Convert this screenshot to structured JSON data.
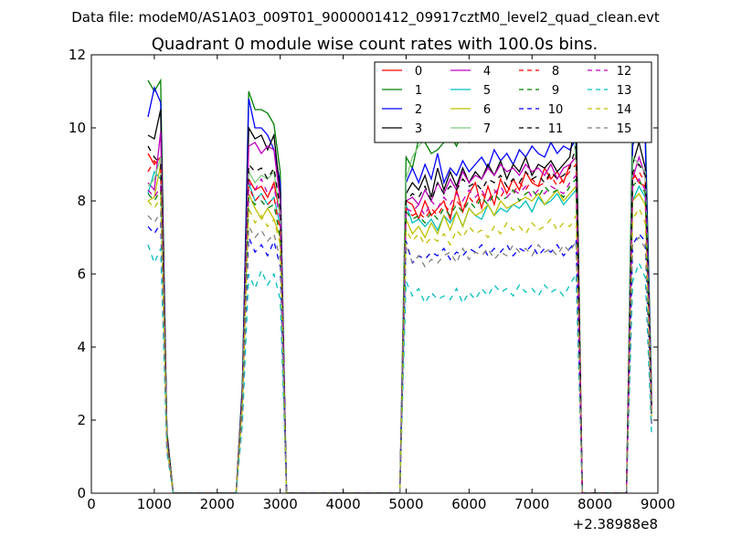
{
  "suptitle": "Data file: modeM0/AS1A03_009T01_9000001412_09917cztM0_level2_quad_clean.evt",
  "chart_data": {
    "type": "line",
    "title": "Quadrant 0 module wise count rates with 100.0s bins.",
    "xlabel": "",
    "ylabel": "",
    "x_offset_label": "+2.38988e8",
    "xlim": [
      0,
      9000
    ],
    "ylim": [
      0,
      12
    ],
    "xticks": [
      0,
      1000,
      2000,
      3000,
      4000,
      5000,
      6000,
      7000,
      8000,
      9000
    ],
    "yticks": [
      0,
      2,
      4,
      6,
      8,
      10,
      12
    ],
    "grid": false,
    "legend": {
      "placement": "top-right",
      "columns": 4
    },
    "x": [
      900,
      1000,
      1100,
      1200,
      1300,
      1400,
      2300,
      2400,
      2500,
      2600,
      2700,
      2800,
      2900,
      3000,
      3100,
      3200,
      4900,
      5000,
      5100,
      5200,
      5300,
      5400,
      5500,
      5600,
      5700,
      5800,
      5900,
      6000,
      6100,
      6200,
      6300,
      6400,
      6500,
      6600,
      6700,
      6800,
      6900,
      7000,
      7100,
      7200,
      7300,
      7400,
      7500,
      7600,
      7700,
      7800,
      7900,
      8500,
      8600,
      8700,
      8800,
      8900
    ],
    "series": [
      {
        "name": "0",
        "color": "#ff0000",
        "dash": "solid",
        "values": [
          9.3,
          9.0,
          9.2,
          1.5,
          0,
          0,
          0,
          2.5,
          8.6,
          8.3,
          8.4,
          8.1,
          8.5,
          7.6,
          0,
          0,
          0,
          8.0,
          7.9,
          7.5,
          8.0,
          7.6,
          7.8,
          8.0,
          7.5,
          8.3,
          7.7,
          8.2,
          8.5,
          7.8,
          8.4,
          7.9,
          8.6,
          8.2,
          8.6,
          8.3,
          8.8,
          8.5,
          8.4,
          8.9,
          8.6,
          8.8,
          8.5,
          9.0,
          9.2,
          0,
          0,
          0,
          8.8,
          8.5,
          8.4,
          2.3
        ]
      },
      {
        "name": "1",
        "color": "#008000",
        "dash": "solid",
        "values": [
          11.3,
          11.0,
          11.3,
          1.7,
          0,
          0,
          0,
          3.0,
          11.0,
          10.5,
          10.5,
          10.4,
          10.1,
          8.8,
          0,
          0,
          0,
          9.2,
          8.9,
          9.7,
          9.6,
          9.3,
          9.4,
          9.6,
          9.8,
          9.5,
          9.9,
          9.6,
          10.0,
          9.7,
          10.1,
          9.8,
          10.0,
          9.9,
          10.2,
          10.0,
          10.2,
          10.1,
          10.3,
          10.0,
          10.4,
          10.2,
          10.3,
          10.1,
          10.5,
          0,
          0,
          0,
          10.5,
          10.8,
          10.0,
          2.8
        ]
      },
      {
        "name": "2",
        "color": "#0000ff",
        "dash": "solid",
        "values": [
          10.3,
          11.1,
          10.7,
          1.6,
          0,
          0,
          0,
          2.9,
          10.8,
          10.0,
          10.0,
          9.8,
          9.4,
          8.5,
          0,
          0,
          0,
          8.5,
          8.9,
          8.5,
          9.0,
          8.6,
          9.3,
          8.5,
          8.9,
          8.7,
          9.1,
          8.8,
          9.0,
          9.2,
          8.9,
          9.4,
          9.1,
          9.3,
          9.0,
          9.4,
          9.2,
          9.5,
          9.3,
          9.2,
          9.6,
          9.3,
          9.5,
          9.4,
          9.7,
          0,
          0,
          0,
          9.5,
          10.2,
          9.6,
          2.6
        ]
      },
      {
        "name": "3",
        "color": "#000000",
        "dash": "solid",
        "values": [
          9.8,
          9.7,
          10.5,
          1.6,
          0,
          0,
          0,
          2.8,
          10.0,
          9.7,
          9.8,
          9.4,
          9.8,
          8.2,
          0,
          0,
          0,
          8.2,
          8.5,
          8.3,
          8.7,
          8.1,
          8.9,
          8.3,
          8.8,
          8.4,
          8.9,
          8.5,
          8.8,
          8.6,
          9.0,
          8.7,
          9.1,
          8.6,
          9.0,
          8.8,
          9.2,
          8.7,
          9.0,
          8.9,
          9.1,
          8.8,
          9.0,
          9.2,
          10.4,
          0,
          0,
          0,
          9.0,
          9.6,
          8.9,
          2.5
        ]
      },
      {
        "name": "4",
        "color": "#bf00bf",
        "dash": "solid",
        "values": [
          8.5,
          8.3,
          9.9,
          1.5,
          0,
          0,
          0,
          2.7,
          9.5,
          9.6,
          9.3,
          9.5,
          9.4,
          8.0,
          0,
          0,
          0,
          8.0,
          8.1,
          7.9,
          8.3,
          8.0,
          8.5,
          8.2,
          8.6,
          8.3,
          8.8,
          8.5,
          8.7,
          8.6,
          8.9,
          8.7,
          9.0,
          8.8,
          8.9,
          8.7,
          9.0,
          8.8,
          8.9,
          8.7,
          9.0,
          8.6,
          8.9,
          9.0,
          9.2,
          0,
          0,
          0,
          8.6,
          9.2,
          8.7,
          2.4
        ]
      },
      {
        "name": "5",
        "color": "#00bfbf",
        "dash": "solid",
        "values": [
          8.2,
          8.8,
          8.6,
          1.4,
          0,
          0,
          0,
          2.5,
          8.5,
          8.0,
          8.2,
          7.9,
          8.1,
          7.3,
          0,
          0,
          0,
          7.9,
          7.4,
          7.5,
          7.3,
          7.5,
          7.2,
          7.6,
          7.4,
          7.7,
          7.3,
          7.8,
          7.6,
          7.5,
          7.9,
          7.6,
          7.8,
          7.7,
          7.9,
          7.8,
          8.0,
          7.7,
          8.1,
          7.9,
          8.0,
          8.2,
          7.9,
          8.1,
          8.3,
          0,
          0,
          0,
          8.0,
          8.4,
          8.1,
          2.2
        ]
      },
      {
        "name": "6",
        "color": "#bfbf00",
        "dash": "solid",
        "values": [
          8.0,
          8.1,
          9.0,
          1.4,
          0,
          0,
          0,
          2.4,
          8.2,
          7.8,
          7.5,
          7.8,
          7.5,
          7.0,
          0,
          0,
          0,
          7.5,
          7.1,
          7.3,
          7.0,
          7.4,
          7.1,
          7.6,
          7.2,
          7.7,
          7.3,
          7.8,
          7.6,
          7.7,
          7.9,
          7.6,
          8.0,
          7.8,
          7.9,
          8.0,
          8.1,
          8.0,
          8.2,
          7.9,
          8.1,
          8.3,
          8.0,
          8.2,
          8.4,
          0,
          0,
          0,
          8.0,
          8.2,
          7.9,
          2.1
        ]
      },
      {
        "name": "7",
        "color": "#7fcc7f",
        "dash": "solid",
        "values": [
          8.4,
          8.6,
          9.2,
          1.4,
          0,
          0,
          0,
          2.6,
          8.8,
          8.5,
          8.7,
          8.6,
          8.8,
          7.6,
          0,
          0,
          0,
          8.6,
          9.2,
          9.5,
          9.7,
          10.0,
          9.8,
          10.2,
          9.9,
          9.6,
          10.1,
          10.3,
          9.9,
          10.5,
          10.2,
          10.4,
          10.6,
          10.3,
          10.8,
          10.5,
          10.7,
          10.2,
          10.9,
          10.6,
          11.0,
          10.7,
          10.9,
          11.5,
          9.0,
          0,
          0,
          0,
          9.2,
          9.0,
          8.8,
          2.4
        ]
      },
      {
        "name": "8",
        "color": "#ff0000",
        "dash": "dashed",
        "values": [
          8.8,
          9.1,
          8.9,
          1.4,
          0,
          0,
          0,
          2.5,
          8.4,
          8.0,
          8.2,
          7.9,
          8.1,
          7.2,
          0,
          0,
          0,
          7.8,
          7.6,
          7.7,
          7.5,
          7.8,
          7.6,
          7.9,
          7.7,
          8.0,
          7.8,
          8.1,
          7.9,
          8.2,
          8.0,
          8.3,
          8.1,
          8.4,
          8.2,
          8.5,
          8.3,
          8.6,
          8.4,
          8.5,
          8.7,
          8.4,
          8.6,
          8.8,
          9.0,
          0,
          0,
          0,
          8.6,
          8.8,
          8.5,
          2.3
        ]
      },
      {
        "name": "9",
        "color": "#008000",
        "dash": "dashed",
        "values": [
          8.2,
          8.0,
          8.3,
          1.3,
          0,
          0,
          0,
          2.4,
          8.1,
          7.9,
          8.0,
          7.8,
          7.9,
          7.0,
          0,
          0,
          0,
          7.7,
          7.5,
          7.6,
          7.4,
          7.7,
          7.5,
          7.8,
          7.6,
          7.9,
          7.7,
          8.0,
          7.8,
          8.1,
          7.9,
          8.2,
          8.0,
          8.1,
          8.3,
          8.0,
          8.2,
          8.3,
          8.1,
          8.4,
          8.2,
          8.3,
          8.1,
          8.4,
          8.6,
          0,
          0,
          0,
          8.4,
          8.6,
          8.2,
          2.2
        ]
      },
      {
        "name": "10",
        "color": "#0000ff",
        "dash": "dashed",
        "values": [
          7.3,
          7.1,
          7.4,
          1.2,
          0,
          0,
          0,
          2.1,
          7.0,
          6.6,
          6.8,
          6.5,
          6.9,
          6.2,
          0,
          0,
          0,
          6.9,
          6.3,
          6.5,
          6.4,
          6.6,
          6.5,
          6.7,
          6.4,
          6.6,
          6.5,
          6.7,
          6.6,
          6.8,
          6.5,
          6.7,
          6.6,
          6.8,
          6.5,
          6.7,
          6.6,
          6.8,
          6.5,
          6.7,
          6.6,
          6.8,
          6.5,
          6.7,
          6.9,
          0,
          0,
          0,
          6.8,
          7.1,
          6.9,
          1.9
        ]
      },
      {
        "name": "11",
        "color": "#000000",
        "dash": "dashed",
        "values": [
          9.5,
          9.2,
          9.0,
          1.4,
          0,
          0,
          0,
          2.6,
          9.0,
          8.8,
          8.9,
          8.6,
          8.9,
          7.8,
          0,
          0,
          0,
          8.0,
          8.2,
          8.1,
          8.4,
          8.0,
          8.5,
          8.2,
          8.4,
          8.3,
          8.6,
          8.4,
          8.5,
          8.3,
          8.6,
          8.5,
          8.7,
          8.4,
          8.6,
          8.5,
          8.8,
          8.6,
          8.7,
          8.5,
          8.8,
          8.6,
          8.7,
          8.9,
          9.5,
          0,
          0,
          0,
          8.8,
          9.0,
          8.7,
          2.4
        ]
      },
      {
        "name": "12",
        "color": "#bf00bf",
        "dash": "dashed",
        "values": [
          8.3,
          8.1,
          8.4,
          1.3,
          0,
          0,
          0,
          2.5,
          8.5,
          8.3,
          8.6,
          8.2,
          8.4,
          7.5,
          0,
          0,
          0,
          7.8,
          7.7,
          7.9,
          7.6,
          8.0,
          7.8,
          8.1,
          7.9,
          8.2,
          8.0,
          8.3,
          8.1,
          8.3,
          8.0,
          8.2,
          8.4,
          8.1,
          8.3,
          8.2,
          8.4,
          8.1,
          8.3,
          8.2,
          8.4,
          8.3,
          8.2,
          8.5,
          8.7,
          0,
          0,
          0,
          8.4,
          8.6,
          8.3,
          2.3
        ]
      },
      {
        "name": "13",
        "color": "#00bfbf",
        "dash": "dashed",
        "values": [
          6.8,
          6.3,
          6.7,
          1.1,
          0,
          0,
          0,
          1.9,
          6.0,
          5.6,
          6.1,
          5.7,
          6.0,
          5.3,
          0,
          0,
          0,
          5.8,
          5.4,
          5.6,
          5.2,
          5.5,
          5.3,
          5.4,
          5.3,
          5.6,
          5.2,
          5.5,
          5.3,
          5.6,
          5.4,
          5.7,
          5.5,
          5.6,
          5.4,
          5.7,
          5.5,
          5.6,
          5.4,
          5.7,
          5.5,
          5.6,
          5.4,
          5.7,
          6.0,
          0,
          0,
          0,
          5.8,
          6.3,
          5.9,
          1.6
        ]
      },
      {
        "name": "14",
        "color": "#bfbf00",
        "dash": "dashed",
        "values": [
          8.0,
          7.8,
          8.1,
          1.3,
          0,
          0,
          0,
          2.4,
          7.8,
          7.4,
          7.6,
          7.3,
          7.5,
          6.8,
          0,
          0,
          0,
          7.2,
          6.9,
          7.1,
          6.8,
          7.0,
          6.9,
          7.1,
          6.8,
          7.2,
          7.0,
          7.3,
          7.1,
          7.2,
          7.0,
          7.3,
          7.1,
          7.4,
          7.2,
          7.3,
          7.1,
          7.4,
          7.2,
          7.3,
          7.5,
          7.2,
          7.4,
          7.3,
          7.6,
          0,
          0,
          0,
          7.5,
          7.8,
          7.4,
          2.1
        ]
      },
      {
        "name": "15",
        "color": "#808080",
        "dash": "dashed",
        "values": [
          7.6,
          7.4,
          7.7,
          1.2,
          0,
          0,
          0,
          2.2,
          7.3,
          7.0,
          7.2,
          6.9,
          7.1,
          6.4,
          0,
          0,
          0,
          6.8,
          6.3,
          6.5,
          6.2,
          6.4,
          6.3,
          6.5,
          6.6,
          6.3,
          6.7,
          6.4,
          6.6,
          6.5,
          6.7,
          6.4,
          6.6,
          6.5,
          6.8,
          6.6,
          6.7,
          6.5,
          6.8,
          6.6,
          6.7,
          6.5,
          6.8,
          6.6,
          6.9,
          0,
          0,
          0,
          6.8,
          7.0,
          6.7,
          1.9
        ]
      }
    ]
  }
}
